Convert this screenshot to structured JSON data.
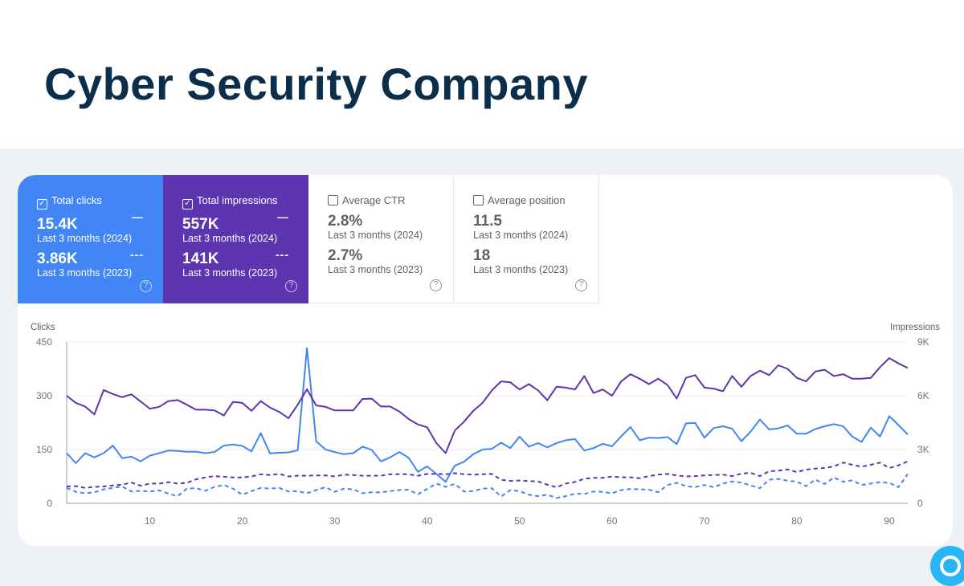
{
  "header": {
    "title": "Cyber Security Company"
  },
  "cards": [
    {
      "label": "Total clicks",
      "checked": true,
      "value_2024": "15.4K",
      "period_2024": "Last 3 months (2024)",
      "value_2023": "3.86K",
      "period_2023": "Last 3 months (2023)",
      "legend_2024": "—",
      "legend_2023": "---"
    },
    {
      "label": "Total impressions",
      "checked": true,
      "value_2024": "557K",
      "period_2024": "Last 3 months (2024)",
      "value_2023": "141K",
      "period_2023": "Last 3 months (2023)",
      "legend_2024": "—",
      "legend_2023": "---"
    },
    {
      "label": "Average CTR",
      "checked": false,
      "value_2024": "2.8%",
      "period_2024": "Last 3 months (2024)",
      "value_2023": "2.7%",
      "period_2023": "Last 3 months (2023)"
    },
    {
      "label": "Average position",
      "checked": false,
      "value_2024": "11.5",
      "period_2024": "Last 3 months (2024)",
      "value_2023": "18",
      "period_2023": "Last 3 months (2023)"
    }
  ],
  "colors": {
    "clicks": "#4285f4",
    "impressions": "#5e35b1",
    "grid": "#ececec"
  },
  "icons": {
    "checkbox": "checkbox-icon",
    "help": "help-circle-icon"
  },
  "chart_data": {
    "type": "line",
    "ylabel_left": "Clicks",
    "ylabel_right": "Impressions",
    "ylim_left": [
      0,
      450
    ],
    "ylim_right": [
      0,
      9000
    ],
    "yticks_left": [
      "0",
      "150",
      "300",
      "450"
    ],
    "yticks_right": [
      "0",
      "3K",
      "6K",
      "9K"
    ],
    "xlim": [
      1,
      92
    ],
    "xticks": [
      "10",
      "20",
      "30",
      "40",
      "50",
      "60",
      "70",
      "80",
      "90"
    ],
    "grid": true,
    "series": [
      {
        "key": "clicks_2024",
        "axis": "left",
        "style": "solid",
        "color": "#4285f4",
        "values": [
          140,
          112,
          140,
          128,
          140,
          161,
          126,
          130,
          117,
          133,
          140,
          147,
          146,
          144,
          144,
          140,
          143,
          161,
          164,
          160,
          145,
          196,
          139,
          141,
          142,
          148,
          433,
          173,
          150,
          143,
          137,
          140,
          158,
          149,
          117,
          128,
          143,
          127,
          88,
          103,
          82,
          60,
          105,
          116,
          137,
          150,
          152,
          169,
          154,
          186,
          158,
          168,
          156,
          168,
          176,
          179,
          147,
          154,
          166,
          159,
          187,
          213,
          176,
          183,
          182,
          185,
          165,
          223,
          224,
          183,
          210,
          215,
          208,
          173,
          200,
          234,
          206,
          209,
          217,
          194,
          194,
          207,
          215,
          221,
          215,
          186,
          171,
          211,
          186,
          243,
          218,
          192
        ]
      },
      {
        "key": "impressions_2024",
        "axis": "right",
        "style": "solid",
        "color": "#5e35b1",
        "values": [
          6000,
          5600,
          5400,
          4960,
          6320,
          6100,
          5920,
          6080,
          5680,
          5280,
          5380,
          5700,
          5760,
          5500,
          5220,
          5220,
          5180,
          4900,
          5660,
          5600,
          5160,
          5700,
          5340,
          5100,
          4740,
          5500,
          6360,
          5460,
          5380,
          5180,
          5180,
          5180,
          5820,
          5840,
          5400,
          5400,
          5120,
          4700,
          4400,
          4240,
          3360,
          2800,
          4060,
          4560,
          5160,
          5600,
          6300,
          6800,
          6750,
          6350,
          6650,
          6300,
          5750,
          6500,
          6450,
          6350,
          7100,
          6150,
          6350,
          6000,
          6800,
          7200,
          6950,
          6650,
          6950,
          6600,
          5850,
          7000,
          7150,
          6450,
          6400,
          6250,
          7100,
          6500,
          7100,
          7400,
          7150,
          7700,
          7500,
          7000,
          6800,
          7350,
          7450,
          7100,
          7200,
          6950,
          6950,
          7000,
          7600,
          8100,
          7800,
          7550
        ]
      },
      {
        "key": "clicks_2023",
        "axis": "left",
        "style": "dashed",
        "color": "#4285f4",
        "values": [
          43,
          32,
          28,
          31,
          39,
          43,
          47,
          33,
          35,
          33,
          36,
          27,
          20,
          41,
          42,
          35,
          46,
          51,
          41,
          24,
          34,
          43,
          41,
          43,
          33,
          34,
          28,
          37,
          45,
          32,
          41,
          39,
          28,
          31,
          31,
          34,
          37,
          38,
          25,
          40,
          55,
          46,
          54,
          33,
          34,
          41,
          42,
          19,
          37,
          34,
          24,
          20,
          24,
          15,
          20,
          27,
          26,
          33,
          32,
          28,
          37,
          40,
          39,
          38,
          31,
          51,
          57,
          48,
          45,
          51,
          45,
          55,
          61,
          58,
          50,
          42,
          66,
          68,
          63,
          61,
          48,
          66,
          54,
          72,
          60,
          64,
          51,
          55,
          59,
          57,
          45,
          82
        ]
      },
      {
        "key": "impressions_2023",
        "axis": "right",
        "style": "dashed",
        "color": "#5e35b1",
        "values": [
          940,
          960,
          860,
          920,
          940,
          1000,
          1040,
          1160,
          980,
          1100,
          1100,
          1180,
          1100,
          1140,
          1340,
          1440,
          1520,
          1480,
          1440,
          1440,
          1500,
          1620,
          1580,
          1640,
          1500,
          1540,
          1540,
          1560,
          1560,
          1500,
          1600,
          1580,
          1540,
          1540,
          1540,
          1620,
          1620,
          1620,
          1540,
          1640,
          1640,
          1620,
          1680,
          1620,
          1600,
          1620,
          1640,
          1310,
          1250,
          1270,
          1240,
          1220,
          1040,
          890,
          1100,
          1190,
          1370,
          1420,
          1420,
          1490,
          1450,
          1450,
          1400,
          1520,
          1600,
          1640,
          1560,
          1500,
          1520,
          1560,
          1580,
          1600,
          1520,
          1650,
          1700,
          1520,
          1790,
          1820,
          1890,
          1740,
          1880,
          1940,
          1970,
          2060,
          2270,
          2150,
          2040,
          2150,
          2270,
          1970,
          2120,
          2340
        ]
      }
    ]
  }
}
